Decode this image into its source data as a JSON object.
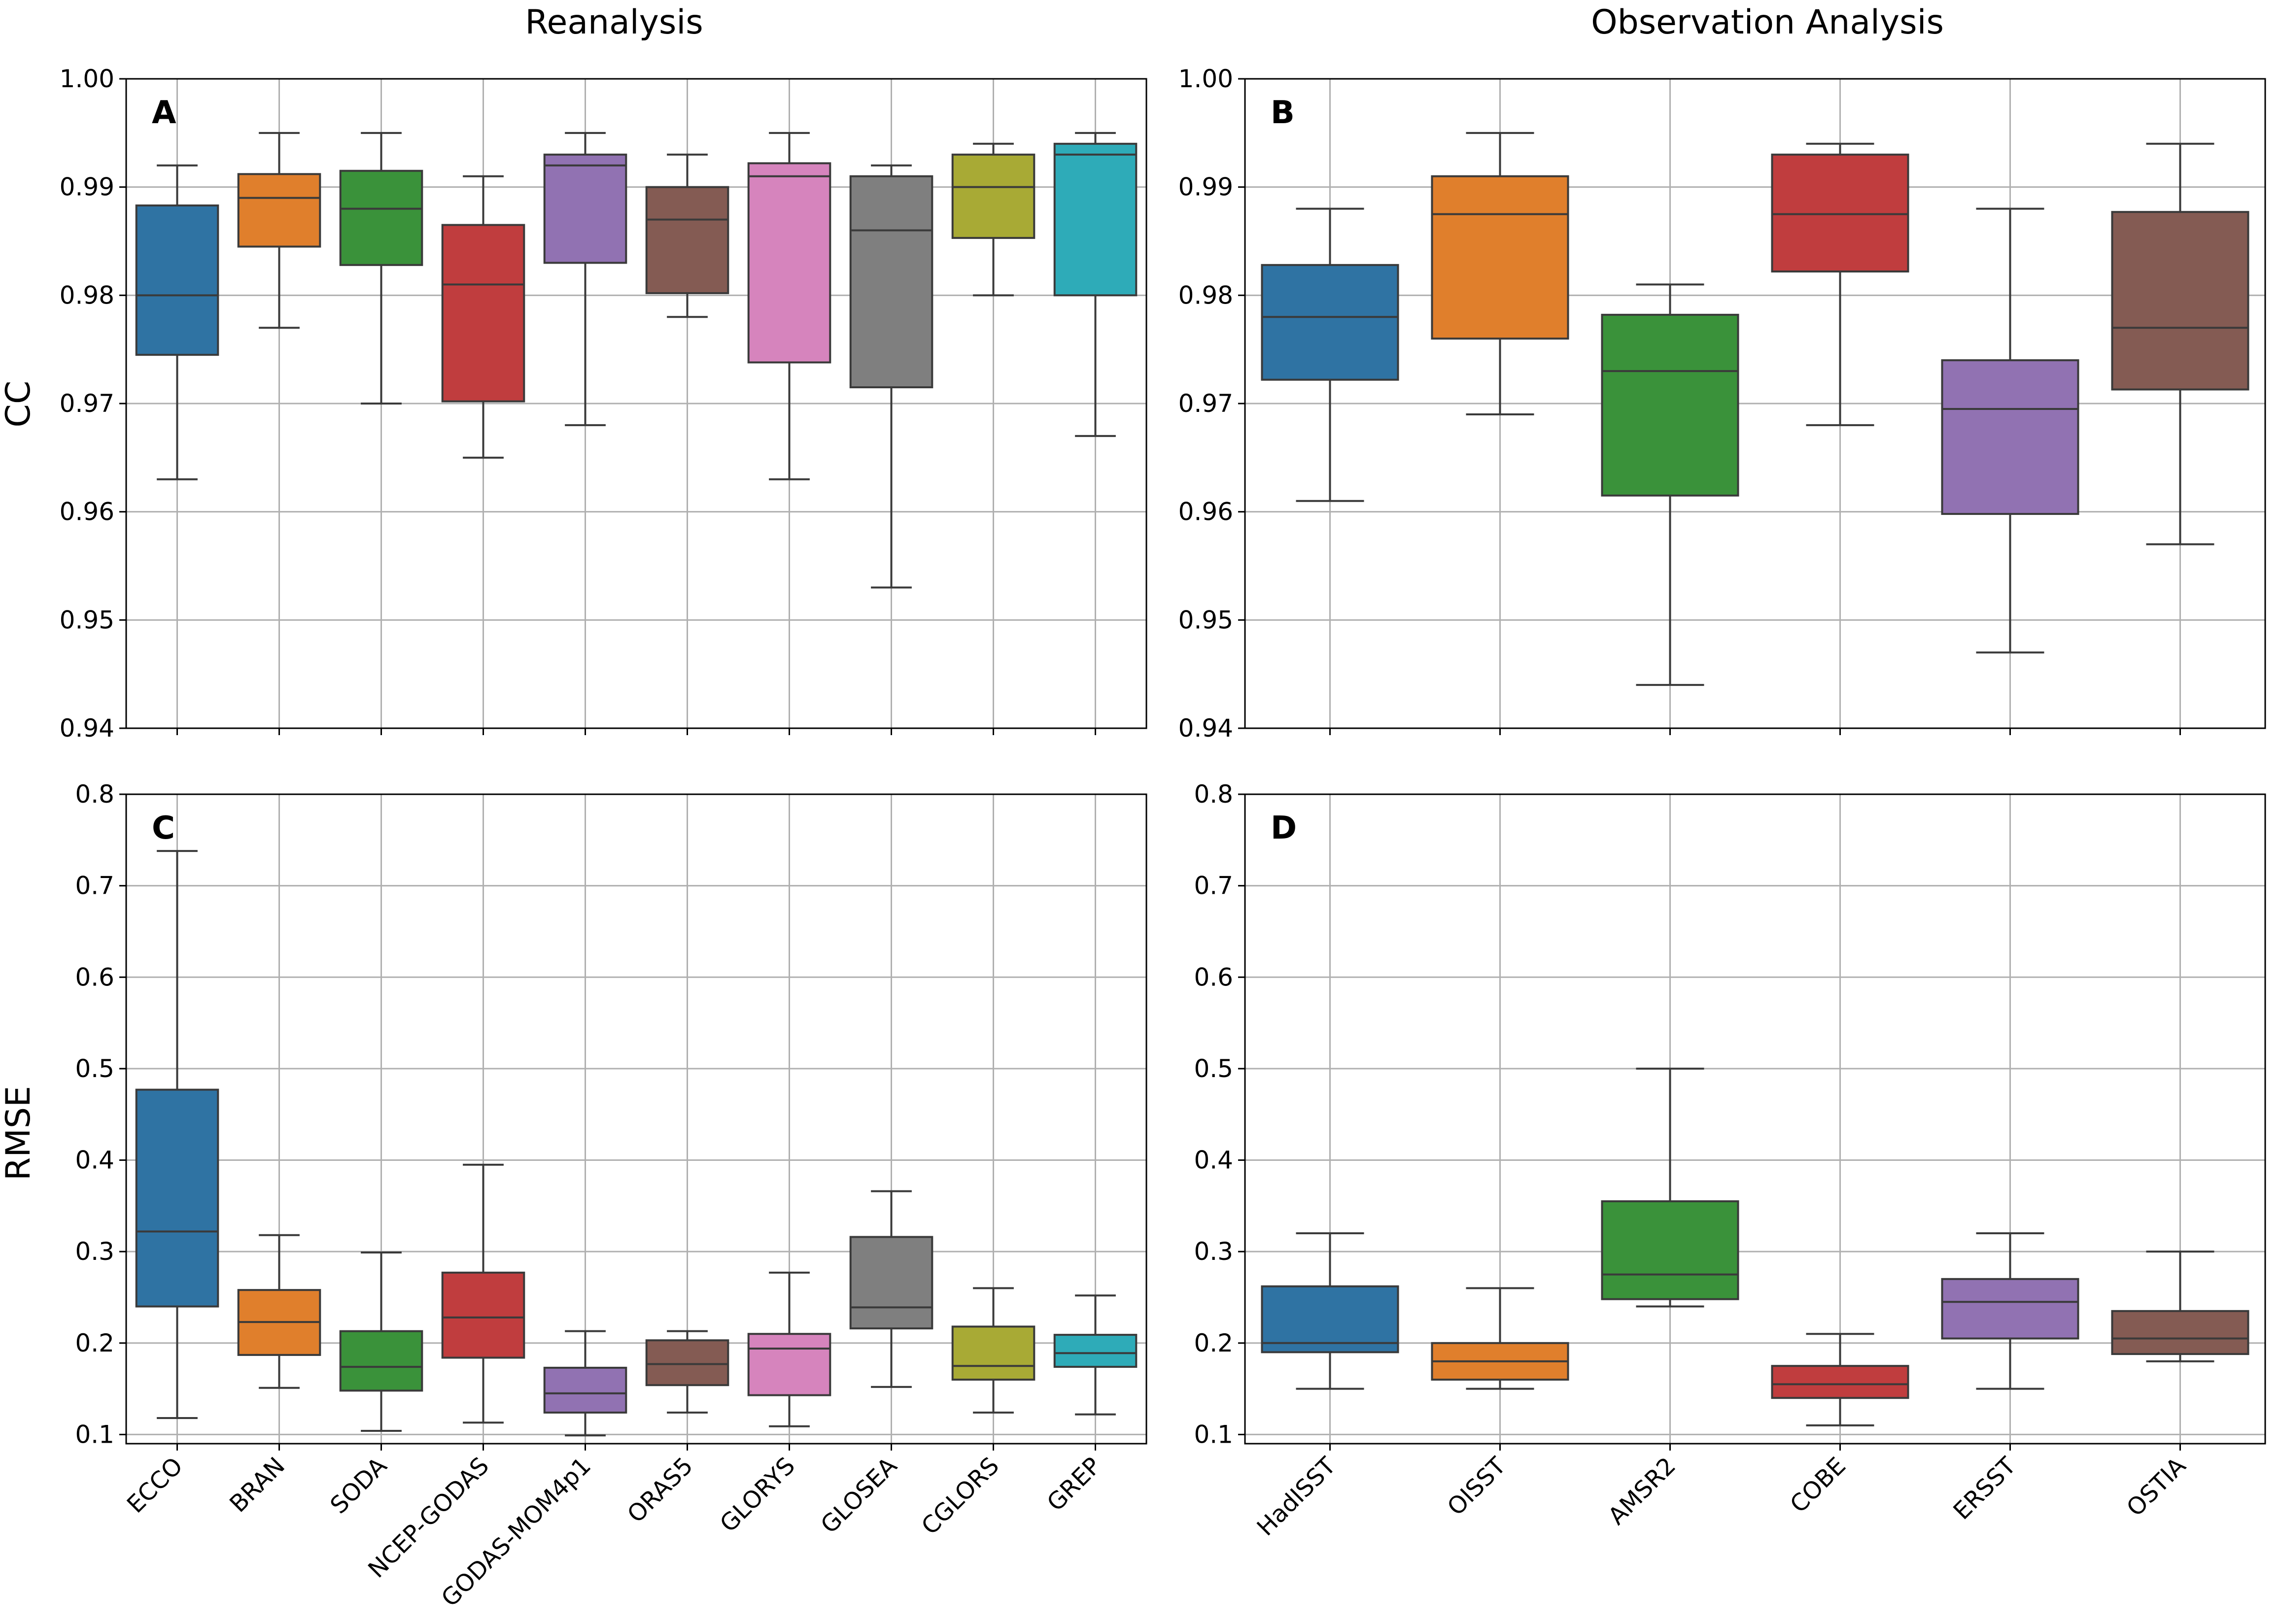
{
  "figure": {
    "column_titles": [
      "Reanalysis",
      "Observation Analysis"
    ],
    "row_labels": [
      "CC",
      "RMSE"
    ]
  },
  "colors": {
    "blue": "#2f73a3",
    "orange": "#e07f2c",
    "green": "#3a923a",
    "red": "#c03d3e",
    "purple": "#9172b2",
    "brown": "#845b53",
    "pink": "#d684bd",
    "gray": "#7f7f7f",
    "olive": "#a8aa35",
    "cyan": "#2eabb8"
  },
  "chart_data": [
    {
      "type": "box",
      "panel": "A",
      "title": "Reanalysis",
      "ylabel": "CC",
      "ylim": [
        0.94,
        1.0
      ],
      "yticks": [
        "0.94",
        "0.95",
        "0.96",
        "0.97",
        "0.98",
        "0.99",
        "1.00"
      ],
      "ytick_values": [
        0.94,
        0.95,
        0.96,
        0.97,
        0.98,
        0.99,
        1.0
      ],
      "categories": [
        "ECCO",
        "BRAN",
        "SODA",
        "NCEP-GODAS",
        "GODAS-MOM4p1",
        "ORAS5",
        "GLORYS",
        "GLOSEA",
        "CGLORS",
        "GREP"
      ],
      "colors": [
        "#2f73a3",
        "#e07f2c",
        "#3a923a",
        "#c03d3e",
        "#9172b2",
        "#845b53",
        "#d684bd",
        "#7f7f7f",
        "#a8aa35",
        "#2eabb8"
      ],
      "boxes": [
        {
          "min": 0.963,
          "q1": 0.9745,
          "median": 0.98,
          "q3": 0.9883,
          "max": 0.992
        },
        {
          "min": 0.977,
          "q1": 0.9845,
          "median": 0.989,
          "q3": 0.9912,
          "max": 0.995
        },
        {
          "min": 0.97,
          "q1": 0.9828,
          "median": 0.988,
          "q3": 0.9915,
          "max": 0.995
        },
        {
          "min": 0.965,
          "q1": 0.9702,
          "median": 0.981,
          "q3": 0.9865,
          "max": 0.991
        },
        {
          "min": 0.968,
          "q1": 0.983,
          "median": 0.992,
          "q3": 0.993,
          "max": 0.995
        },
        {
          "min": 0.978,
          "q1": 0.9802,
          "median": 0.987,
          "q3": 0.99,
          "max": 0.993
        },
        {
          "min": 0.963,
          "q1": 0.9738,
          "median": 0.991,
          "q3": 0.9922,
          "max": 0.995
        },
        {
          "min": 0.953,
          "q1": 0.9715,
          "median": 0.986,
          "q3": 0.991,
          "max": 0.992
        },
        {
          "min": 0.98,
          "q1": 0.9853,
          "median": 0.99,
          "q3": 0.993,
          "max": 0.994
        },
        {
          "min": 0.967,
          "q1": 0.98,
          "median": 0.993,
          "q3": 0.994,
          "max": 0.995
        }
      ],
      "grid": true
    },
    {
      "type": "box",
      "panel": "B",
      "title": "Observation Analysis",
      "ylabel": "",
      "ylim": [
        0.94,
        1.0
      ],
      "yticks": [
        "0.94",
        "0.95",
        "0.96",
        "0.97",
        "0.98",
        "0.99",
        "1.00"
      ],
      "ytick_values": [
        0.94,
        0.95,
        0.96,
        0.97,
        0.98,
        0.99,
        1.0
      ],
      "categories": [
        "HadISST",
        "OISST",
        "AMSR2",
        "COBE",
        "ERSST",
        "OSTIA"
      ],
      "colors": [
        "#2f73a3",
        "#e07f2c",
        "#3a923a",
        "#c03d3e",
        "#9172b2",
        "#845b53"
      ],
      "boxes": [
        {
          "min": 0.961,
          "q1": 0.9722,
          "median": 0.978,
          "q3": 0.9828,
          "max": 0.988
        },
        {
          "min": 0.969,
          "q1": 0.976,
          "median": 0.9875,
          "q3": 0.991,
          "max": 0.995
        },
        {
          "min": 0.944,
          "q1": 0.9615,
          "median": 0.973,
          "q3": 0.9782,
          "max": 0.981
        },
        {
          "min": 0.968,
          "q1": 0.9822,
          "median": 0.9875,
          "q3": 0.993,
          "max": 0.994
        },
        {
          "min": 0.947,
          "q1": 0.9598,
          "median": 0.9695,
          "q3": 0.974,
          "max": 0.988
        },
        {
          "min": 0.957,
          "q1": 0.9713,
          "median": 0.977,
          "q3": 0.9877,
          "max": 0.994
        }
      ],
      "grid": true
    },
    {
      "type": "box",
      "panel": "C",
      "title": "",
      "ylabel": "RMSE",
      "ylim": [
        0.09,
        0.8
      ],
      "yticks": [
        "0.1",
        "0.2",
        "0.3",
        "0.4",
        "0.5",
        "0.6",
        "0.7",
        "0.8"
      ],
      "ytick_values": [
        0.1,
        0.2,
        0.3,
        0.4,
        0.5,
        0.6,
        0.7,
        0.8
      ],
      "categories": [
        "ECCO",
        "BRAN",
        "SODA",
        "NCEP-GODAS",
        "GODAS-MOM4p1",
        "ORAS5",
        "GLORYS",
        "GLOSEA",
        "CGLORS",
        "GREP"
      ],
      "colors": [
        "#2f73a3",
        "#e07f2c",
        "#3a923a",
        "#c03d3e",
        "#9172b2",
        "#845b53",
        "#d684bd",
        "#7f7f7f",
        "#a8aa35",
        "#2eabb8"
      ],
      "boxes": [
        {
          "min": 0.118,
          "q1": 0.24,
          "median": 0.322,
          "q3": 0.477,
          "max": 0.738
        },
        {
          "min": 0.151,
          "q1": 0.187,
          "median": 0.223,
          "q3": 0.258,
          "max": 0.318
        },
        {
          "min": 0.104,
          "q1": 0.148,
          "median": 0.174,
          "q3": 0.213,
          "max": 0.299
        },
        {
          "min": 0.113,
          "q1": 0.184,
          "median": 0.228,
          "q3": 0.277,
          "max": 0.395
        },
        {
          "min": 0.099,
          "q1": 0.124,
          "median": 0.145,
          "q3": 0.173,
          "max": 0.213
        },
        {
          "min": 0.124,
          "q1": 0.154,
          "median": 0.177,
          "q3": 0.203,
          "max": 0.213
        },
        {
          "min": 0.109,
          "q1": 0.143,
          "median": 0.194,
          "q3": 0.21,
          "max": 0.277
        },
        {
          "min": 0.152,
          "q1": 0.216,
          "median": 0.239,
          "q3": 0.316,
          "max": 0.366
        },
        {
          "min": 0.124,
          "q1": 0.16,
          "median": 0.175,
          "q3": 0.218,
          "max": 0.26
        },
        {
          "min": 0.122,
          "q1": 0.174,
          "median": 0.189,
          "q3": 0.209,
          "max": 0.252
        }
      ],
      "grid": true
    },
    {
      "type": "box",
      "panel": "D",
      "title": "",
      "ylabel": "",
      "ylim": [
        0.09,
        0.8
      ],
      "yticks": [
        "0.1",
        "0.2",
        "0.3",
        "0.4",
        "0.5",
        "0.6",
        "0.7",
        "0.8"
      ],
      "ytick_values": [
        0.1,
        0.2,
        0.3,
        0.4,
        0.5,
        0.6,
        0.7,
        0.8
      ],
      "categories": [
        "HadISST",
        "OISST",
        "AMSR2",
        "COBE",
        "ERSST",
        "OSTIA"
      ],
      "colors": [
        "#2f73a3",
        "#e07f2c",
        "#3a923a",
        "#c03d3e",
        "#9172b2",
        "#845b53"
      ],
      "boxes": [
        {
          "min": 0.15,
          "q1": 0.19,
          "median": 0.2,
          "q3": 0.262,
          "max": 0.32
        },
        {
          "min": 0.15,
          "q1": 0.16,
          "median": 0.18,
          "q3": 0.2,
          "max": 0.26
        },
        {
          "min": 0.24,
          "q1": 0.248,
          "median": 0.275,
          "q3": 0.355,
          "max": 0.5
        },
        {
          "min": 0.11,
          "q1": 0.14,
          "median": 0.155,
          "q3": 0.175,
          "max": 0.21
        },
        {
          "min": 0.15,
          "q1": 0.205,
          "median": 0.245,
          "q3": 0.27,
          "max": 0.32
        },
        {
          "min": 0.18,
          "q1": 0.188,
          "median": 0.205,
          "q3": 0.235,
          "max": 0.3
        }
      ],
      "grid": true
    }
  ]
}
